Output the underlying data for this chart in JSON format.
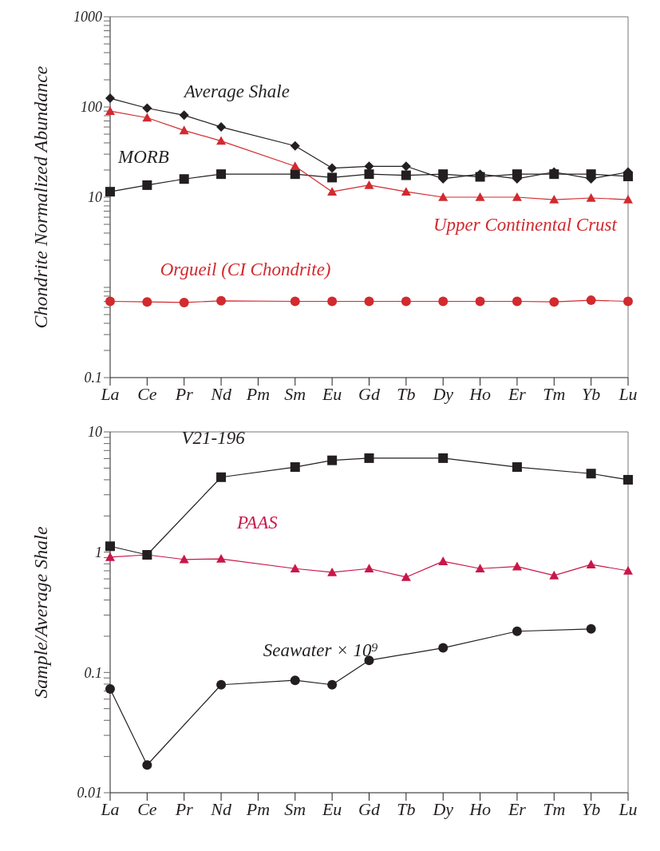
{
  "chart_data": [
    {
      "type": "line",
      "ylabel": "Chondrite Normalized Abundance",
      "log": true,
      "categories": [
        "La",
        "Ce",
        "Pr",
        "Nd",
        "Pm",
        "Sm",
        "Eu",
        "Gd",
        "Tb",
        "Dy",
        "Ho",
        "Er",
        "Tm",
        "Yb",
        "Lu"
      ],
      "ylim": [
        0.1,
        1000
      ],
      "yticks": [
        0.1,
        {
          "value": 0.2,
          "label": null
        },
        {
          "value": 0.3,
          "label": null
        },
        {
          "value": 0.4,
          "label": null
        },
        {
          "value": 0.5,
          "label": null
        },
        {
          "value": 0.6,
          "label": null
        },
        {
          "value": 0.7,
          "label": null
        },
        {
          "value": 0.8,
          "label": null
        },
        {
          "value": 0.9,
          "label": null
        },
        {
          "value": 1,
          "label": null
        },
        {
          "value": 2,
          "label": null
        },
        {
          "value": 3,
          "label": null
        },
        {
          "value": 4,
          "label": null
        },
        {
          "value": 5,
          "label": null
        },
        {
          "value": 6,
          "label": null
        },
        {
          "value": 7,
          "label": null
        },
        {
          "value": 8,
          "label": null
        },
        {
          "value": 9,
          "label": null
        },
        10,
        {
          "value": 20,
          "label": null
        },
        {
          "value": 30,
          "label": null
        },
        {
          "value": 40,
          "label": null
        },
        {
          "value": 50,
          "label": null
        },
        {
          "value": 60,
          "label": null
        },
        {
          "value": 70,
          "label": null
        },
        {
          "value": 80,
          "label": null
        },
        {
          "value": 90,
          "label": null
        },
        100,
        {
          "value": 200,
          "label": null
        },
        {
          "value": 300,
          "label": null
        },
        {
          "value": 400,
          "label": null
        },
        {
          "value": 500,
          "label": null
        },
        {
          "value": 600,
          "label": null
        },
        {
          "value": 700,
          "label": null
        },
        {
          "value": 800,
          "label": null
        },
        {
          "value": 900,
          "label": null
        },
        1000
      ],
      "series": [
        {
          "name": "Average Shale",
          "color": "#231f20",
          "marker": "diamond",
          "values": [
            125,
            97,
            81,
            60,
            null,
            37,
            21,
            22,
            22,
            16,
            18,
            16,
            19,
            16,
            19
          ]
        },
        {
          "name": "Upper Continental Crust",
          "color": "#d12a2f",
          "marker": "triangle",
          "values": [
            90,
            76,
            55,
            42,
            null,
            22,
            11.5,
            13.6,
            11.5,
            10,
            10,
            10,
            9.4,
            9.8,
            9.4
          ]
        },
        {
          "name": "MORB",
          "color": "#231f20",
          "marker": "square",
          "values": [
            11.5,
            13.6,
            15.9,
            18,
            null,
            18,
            16.5,
            18,
            17.5,
            18,
            16.8,
            18,
            18,
            18,
            17
          ]
        },
        {
          "name": "Orgueil (CI Chondrite)",
          "color": "#d12a2f",
          "marker": "circle",
          "values": [
            0.7,
            0.69,
            0.68,
            0.71,
            null,
            0.7,
            0.7,
            0.7,
            0.7,
            0.7,
            0.7,
            0.7,
            0.69,
            0.72,
            0.7
          ]
        }
      ]
    },
    {
      "type": "line",
      "ylabel": "Sample/Average Shale",
      "log": true,
      "categories": [
        "La",
        "Ce",
        "Pr",
        "Nd",
        "Pm",
        "Sm",
        "Eu",
        "Gd",
        "Tb",
        "Dy",
        "Ho",
        "Er",
        "Tm",
        "Yb",
        "Lu"
      ],
      "ylim": [
        0.01,
        10
      ],
      "yticks": [
        0.01,
        {
          "value": 0.02,
          "label": null
        },
        {
          "value": 0.03,
          "label": null
        },
        {
          "value": 0.04,
          "label": null
        },
        {
          "value": 0.05,
          "label": null
        },
        {
          "value": 0.06,
          "label": null
        },
        {
          "value": 0.07,
          "label": null
        },
        {
          "value": 0.08,
          "label": null
        },
        {
          "value": 0.09,
          "label": null
        },
        0.1,
        {
          "value": 0.2,
          "label": null
        },
        {
          "value": 0.3,
          "label": null
        },
        {
          "value": 0.4,
          "label": null
        },
        {
          "value": 0.5,
          "label": null
        },
        {
          "value": 0.6,
          "label": null
        },
        {
          "value": 0.7,
          "label": null
        },
        {
          "value": 0.8,
          "label": null
        },
        {
          "value": 0.9,
          "label": null
        },
        1,
        {
          "value": 2,
          "label": null
        },
        {
          "value": 3,
          "label": null
        },
        {
          "value": 4,
          "label": null
        },
        {
          "value": 5,
          "label": null
        },
        {
          "value": 6,
          "label": null
        },
        {
          "value": 7,
          "label": null
        },
        {
          "value": 8,
          "label": null
        },
        {
          "value": 9,
          "label": null
        },
        10
      ],
      "series": [
        {
          "name": "V21-196",
          "color": "#231f20",
          "marker": "square",
          "values": [
            1.12,
            0.95,
            null,
            4.2,
            null,
            5.1,
            5.8,
            6.05,
            null,
            6.05,
            null,
            5.1,
            null,
            4.5,
            4.0
          ]
        },
        {
          "name": "PAAS",
          "color": "#c8174a",
          "marker": "triangle",
          "values": [
            0.91,
            0.95,
            0.87,
            0.88,
            null,
            0.73,
            0.68,
            0.73,
            0.62,
            0.84,
            0.73,
            0.76,
            0.64,
            0.79,
            0.7
          ]
        },
        {
          "name": "Seawater × 10⁹",
          "color": "#231f20",
          "marker": "circle",
          "values": [
            0.073,
            0.017,
            null,
            0.079,
            null,
            0.086,
            0.079,
            0.126,
            null,
            0.16,
            null,
            0.22,
            null,
            0.23,
            null
          ]
        }
      ]
    }
  ]
}
